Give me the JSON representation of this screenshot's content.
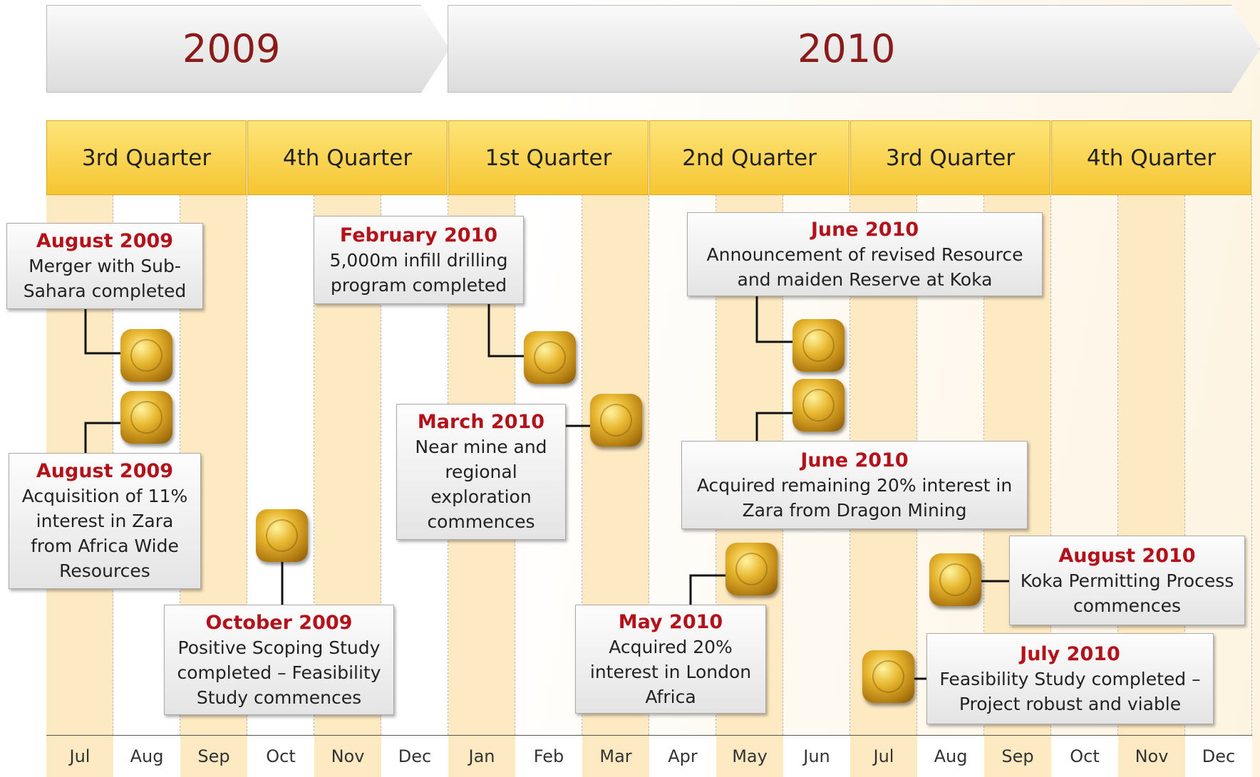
{
  "years": [
    "2009",
    "2010"
  ],
  "quarters": [
    "3rd Quarter",
    "4th Quarter",
    "1st Quarter",
    "2nd Quarter",
    "3rd Quarter",
    "4th Quarter"
  ],
  "months": [
    "Jul",
    "Aug",
    "Sep",
    "Oct",
    "Nov",
    "Dec",
    "Jan",
    "Feb",
    "Mar",
    "Apr",
    "May",
    "Jun",
    "Jul",
    "Aug",
    "Sep",
    "Oct",
    "Nov",
    "Dec"
  ],
  "events": [
    {
      "date": "August 2009",
      "text": "Merger with Sub-Sahara completed"
    },
    {
      "date": "August 2009",
      "text": "Acquisition of 11% interest in Zara from Africa Wide Resources"
    },
    {
      "date": "October 2009",
      "text": "Positive Scoping Study completed – Feasibility Study commences"
    },
    {
      "date": "February 2010",
      "text": "5,000m infill drilling program completed"
    },
    {
      "date": "March 2010",
      "text": "Near mine and regional exploration commences"
    },
    {
      "date": "June 2010",
      "text": "Announcement of revised Resource and maiden Reserve at Koka"
    },
    {
      "date": "June 2010",
      "text": "Acquired remaining 20% interest in Zara from Dragon Mining"
    },
    {
      "date": "May 2010",
      "text": "Acquired 20% interest in London Africa"
    },
    {
      "date": "August 2010",
      "text": "Koka Permitting Process commences"
    },
    {
      "date": "July 2010",
      "text": "Feasibility Study completed – Project robust and viable"
    }
  ]
}
